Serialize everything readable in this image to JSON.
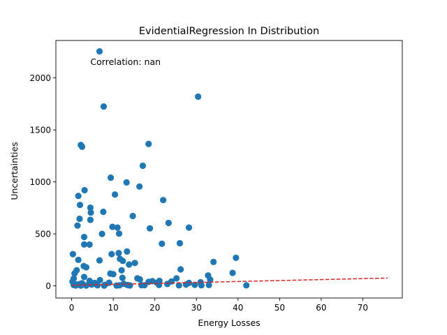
{
  "chart_data": {
    "type": "scatter",
    "title": "EvidentialRegression In Distribution",
    "xlabel": "Energy Losses",
    "ylabel": "Uncertainties",
    "annotation": "Correlation: nan",
    "xlim": [
      -3.8,
      79.5
    ],
    "ylim": [
      -117,
      2360
    ],
    "xticks": [
      0,
      10,
      20,
      30,
      40,
      50,
      60,
      70
    ],
    "yticks": [
      0,
      500,
      1000,
      1500,
      2000
    ],
    "grid": false,
    "legend": "none",
    "colors": {
      "points": "#1f77b4",
      "trend": "#d62728"
    },
    "trend_line": {
      "style": "dashed",
      "points": [
        [
          0,
          5
        ],
        [
          76,
          75
        ]
      ]
    },
    "series": [
      {
        "points": [
          [
            6.7,
            2255
          ],
          [
            30.4,
            1820
          ],
          [
            7.7,
            1725
          ],
          [
            2.2,
            1355
          ],
          [
            2.5,
            1338
          ],
          [
            18.5,
            1365
          ],
          [
            17.1,
            1155
          ],
          [
            9.4,
            1040
          ],
          [
            13.2,
            995
          ],
          [
            16.3,
            955
          ],
          [
            3.1,
            920
          ],
          [
            10.4,
            878
          ],
          [
            1.6,
            865
          ],
          [
            22.0,
            825
          ],
          [
            2.0,
            778
          ],
          [
            4.5,
            752
          ],
          [
            4.6,
            705
          ],
          [
            7.6,
            712
          ],
          [
            14.7,
            672
          ],
          [
            1.9,
            645
          ],
          [
            4.5,
            635
          ],
          [
            23.3,
            605
          ],
          [
            1.4,
            580
          ],
          [
            9.8,
            568
          ],
          [
            11.0,
            560
          ],
          [
            18.8,
            553
          ],
          [
            28.2,
            560
          ],
          [
            11.4,
            502
          ],
          [
            7.3,
            500
          ],
          [
            3.0,
            470
          ],
          [
            21.7,
            405
          ],
          [
            3.0,
            398
          ],
          [
            4.3,
            397
          ],
          [
            26.0,
            410
          ],
          [
            13.3,
            330
          ],
          [
            11.3,
            315
          ],
          [
            9.6,
            305
          ],
          [
            0.3,
            305
          ],
          [
            39.5,
            270
          ],
          [
            11.6,
            260
          ],
          [
            1.6,
            250
          ],
          [
            12.3,
            240
          ],
          [
            6.7,
            245
          ],
          [
            34.1,
            230
          ],
          [
            15.2,
            220
          ],
          [
            13.8,
            205
          ],
          [
            2.9,
            190
          ],
          [
            3.5,
            178
          ],
          [
            26.2,
            158
          ],
          [
            1.2,
            150
          ],
          [
            12.0,
            150
          ],
          [
            0.7,
            120
          ],
          [
            9.3,
            118
          ],
          [
            10.0,
            112
          ],
          [
            38.7,
            125
          ],
          [
            32.8,
            100
          ],
          [
            3.0,
            85
          ],
          [
            0.5,
            70
          ],
          [
            12.2,
            78
          ],
          [
            25.2,
            72
          ],
          [
            33.3,
            60
          ],
          [
            16.4,
            62
          ],
          [
            6.8,
            55
          ],
          [
            4.3,
            48
          ],
          [
            0.2,
            40
          ],
          [
            19.4,
            45
          ],
          [
            21.1,
            48
          ],
          [
            31.0,
            35
          ],
          [
            28.2,
            28
          ],
          [
            2.0,
            18
          ],
          [
            1.2,
            12
          ],
          [
            8.0,
            10
          ],
          [
            5.9,
            15
          ],
          [
            0.5,
            8
          ],
          [
            11.5,
            5
          ],
          [
            13.4,
            8
          ],
          [
            16.8,
            6
          ],
          [
            21.0,
            8
          ],
          [
            25.8,
            5
          ],
          [
            29.6,
            10
          ],
          [
            31.2,
            5
          ],
          [
            33.0,
            8
          ],
          [
            42.0,
            5
          ],
          [
            3.5,
            3
          ],
          [
            7.8,
            2
          ],
          [
            10.8,
            3
          ],
          [
            14.0,
            4
          ],
          [
            17.5,
            6
          ],
          [
            18.5,
            38
          ],
          [
            24.0,
            42
          ],
          [
            2.5,
            25
          ],
          [
            5.5,
            28
          ],
          [
            9.0,
            30
          ],
          [
            4.8,
            12
          ],
          [
            6.2,
            5
          ],
          [
            2.2,
            2
          ],
          [
            1.0,
            4
          ],
          [
            12.5,
            20
          ],
          [
            15.8,
            72
          ],
          [
            20.5,
            30
          ],
          [
            23.0,
            18
          ],
          [
            27.5,
            12
          ]
        ]
      }
    ]
  }
}
